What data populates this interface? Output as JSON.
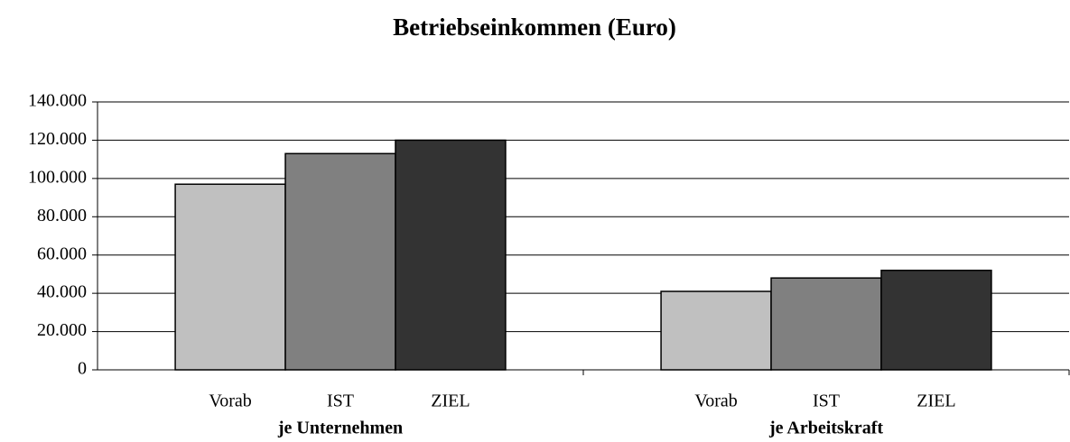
{
  "chart_data": {
    "type": "bar",
    "title": "Betriebseinkommen (Euro)",
    "categories": [
      "je Unternehmen",
      "je Arbeitskraft"
    ],
    "series": [
      {
        "name": "Vorab",
        "color": "#c0c0c0",
        "values": [
          97000,
          41000
        ]
      },
      {
        "name": "IST",
        "color": "#808080",
        "values": [
          113000,
          48000
        ]
      },
      {
        "name": "ZIEL",
        "color": "#333333",
        "values": [
          120000,
          52000
        ]
      }
    ],
    "ylim": [
      0,
      140000
    ],
    "yticks": [
      0,
      {
        "value": 20000,
        "label": "20.000"
      },
      {
        "value": 40000,
        "label": "40.000"
      },
      {
        "value": 60000,
        "label": "60.000"
      },
      {
        "value": 80000,
        "label": "80.000"
      },
      {
        "value": 100000,
        "label": "100.000"
      },
      {
        "value": 120000,
        "label": "120.000"
      },
      {
        "value": 140000,
        "label": "140.000"
      }
    ],
    "grid": true
  }
}
